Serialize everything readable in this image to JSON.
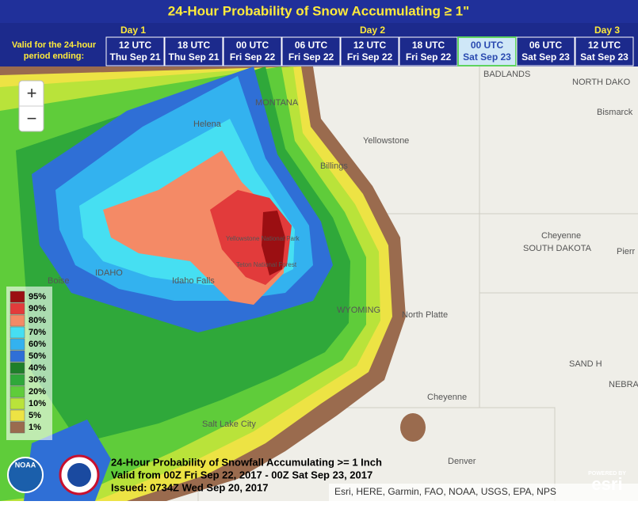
{
  "header": {
    "title": "24-Hour Probability of Snow Accumulating ≥ 1\"",
    "valid_label": [
      "Valid for the 24-hour",
      "period ending:"
    ],
    "days": [
      "Day 1",
      "Day 2",
      "Day 3"
    ],
    "selected_period": 6,
    "periods": [
      {
        "time": "12 UTC",
        "date": "Thu Sep 21"
      },
      {
        "time": "18 UTC",
        "date": "Thu Sep 21"
      },
      {
        "time": "00 UTC",
        "date": "Fri Sep 22"
      },
      {
        "time": "06 UTC",
        "date": "Fri Sep 22"
      },
      {
        "time": "12 UTC",
        "date": "Fri Sep 22"
      },
      {
        "time": "18 UTC",
        "date": "Fri Sep 22"
      },
      {
        "time": "00 UTC",
        "date": "Sat Sep 23"
      },
      {
        "time": "06 UTC",
        "date": "Sat Sep 23"
      },
      {
        "time": "12 UTC",
        "date": "Sat Sep 23"
      }
    ]
  },
  "zoom": {
    "in": "+",
    "out": "−"
  },
  "legend": [
    {
      "label": "95%",
      "color": "#9b0f12"
    },
    {
      "label": "90%",
      "color": "#e23b3b"
    },
    {
      "label": "80%",
      "color": "#f48a66"
    },
    {
      "label": "70%",
      "color": "#46dff2"
    },
    {
      "label": "60%",
      "color": "#33b2ef"
    },
    {
      "label": "50%",
      "color": "#2f6fd6"
    },
    {
      "label": "40%",
      "color": "#1f7f2a"
    },
    {
      "label": "30%",
      "color": "#2fa83a"
    },
    {
      "label": "20%",
      "color": "#5fcc3a"
    },
    {
      "label": "10%",
      "color": "#b9e33a"
    },
    {
      "label": "5%",
      "color": "#ede344"
    },
    {
      "label": "1%",
      "color": "#9a6b4e"
    }
  ],
  "map_labels": [
    "BADLANDS",
    "NORTH DAKO",
    "Bismarck",
    "MONTANA",
    "Helena",
    "Yellowstone",
    "Billings",
    "Cheyenne",
    "SOUTH DAKOTA",
    "Pierr",
    "Boise",
    "IDAHO",
    "Idaho Falls",
    "WYOMING",
    "North Platte",
    "SAND H",
    "NEBRA",
    "Cheyenne",
    "Salt Lake City",
    "Denver",
    "Yellowstone National Park",
    "Teton National Forest"
  ],
  "caption": [
    "24-Hour Probability of Snowfall Accumulating >= 1 Inch",
    "Valid from 00Z Fri Sep 22, 2017 - 00Z Sat Sep 23, 2017",
    "Issued: 0734Z Wed Sep 20, 2017"
  ],
  "attribution": "Esri, HERE, Garmin, FAO, NOAA, USGS, EPA, NPS",
  "logos": {
    "noaa": "NOAA",
    "powered": "POWERED BY",
    "esri": "esri"
  }
}
